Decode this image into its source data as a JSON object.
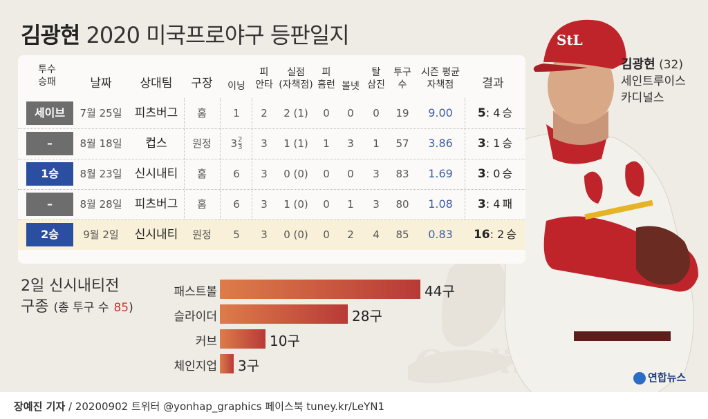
{
  "title": {
    "bold": "김광현",
    "rest": "2020 미국프로야구 등판일지"
  },
  "table": {
    "headers": {
      "decision": [
        "투수",
        "승패"
      ],
      "date": "날짜",
      "opponent": "상대팀",
      "venue": "구장",
      "innings": "이닝",
      "hits": [
        "피",
        "안타"
      ],
      "runs": [
        "실점",
        "(자책점)"
      ],
      "hr": [
        "피",
        "홈런"
      ],
      "bb": "볼넷",
      "so": [
        "탈",
        "삼진"
      ],
      "pitches": [
        "투구",
        "수"
      ],
      "era": [
        "시즌 평균",
        "자책점"
      ],
      "result": "결과"
    },
    "rows": [
      {
        "decision": "세이브",
        "decision_style": "gray",
        "date": "7월 25일",
        "opponent": "피츠버그",
        "venue": "홈",
        "innings": "1",
        "hits": "2",
        "runs": "2 (1)",
        "hr": "0",
        "bb": "0",
        "so": "0",
        "pitches": "19",
        "era": "9.00",
        "score": "5",
        "score_opp": ": 4",
        "outcome": "승"
      },
      {
        "decision": "–",
        "decision_style": "gray",
        "date": "8월 18일",
        "opponent": "컵스",
        "venue": "원정",
        "innings_whole": "3",
        "innings_num": "2",
        "innings_den": "3",
        "hits": "3",
        "runs": "1 (1)",
        "hr": "1",
        "bb": "3",
        "so": "1",
        "pitches": "57",
        "era": "3.86",
        "score": "3",
        "score_opp": ": 1",
        "outcome": "승"
      },
      {
        "decision": "1승",
        "decision_style": "blue",
        "date": "8월 23일",
        "opponent": "신시내티",
        "venue": "홈",
        "innings": "6",
        "hits": "3",
        "runs": "0 (0)",
        "hr": "0",
        "bb": "0",
        "so": "3",
        "pitches": "83",
        "era": "1.69",
        "score": "3",
        "score_opp": ": 0",
        "outcome": "승"
      },
      {
        "decision": "–",
        "decision_style": "gray",
        "date": "8월 28일",
        "opponent": "피츠버그",
        "venue": "홈",
        "innings": "6",
        "hits": "3",
        "runs": "1 (0)",
        "hr": "0",
        "bb": "1",
        "so": "3",
        "pitches": "80",
        "era": "1.08",
        "score": "3",
        "score_opp": ": 4",
        "outcome": "패"
      },
      {
        "decision": "2승",
        "decision_style": "blue",
        "date": "9월 2일",
        "opponent": "신시내티",
        "venue": "원정",
        "innings": "5",
        "hits": "3",
        "runs": "0 (0)",
        "hr": "0",
        "bb": "2",
        "so": "4",
        "pitches": "85",
        "era": "0.83",
        "score": "16",
        "score_opp": ": 2",
        "outcome": "승"
      }
    ]
  },
  "pitch_mix": {
    "title": "2일 신시내티전",
    "subtitle_prefix": "구종",
    "subtitle_total": "(총 투구 수",
    "total": "85",
    "close": ")",
    "items": [
      {
        "label": "패스트볼",
        "value": 44,
        "text": "44구"
      },
      {
        "label": "슬라이더",
        "value": 28,
        "text": "28구"
      },
      {
        "label": "커브",
        "value": 10,
        "text": "10구"
      },
      {
        "label": "체인지업",
        "value": 3,
        "text": "3구"
      }
    ]
  },
  "player": {
    "name": "김광현",
    "age": "(32)",
    "team_line1": "세인트루이스",
    "team_line2": "카디널스"
  },
  "logo": "연합뉴스",
  "footer": {
    "byline": "장예진 기자",
    "rest": " / 20200902 트위터 @yonhap_graphics  페이스북 tuney.kr/LeYN1"
  },
  "colors": {
    "badge_gray": "#6d6d6d",
    "badge_blue": "#2b4fa0",
    "bar_start": "#dd7c4a",
    "bar_end": "#b83a37",
    "era_blue": "#3e5da8",
    "panel": "#efece6"
  }
}
